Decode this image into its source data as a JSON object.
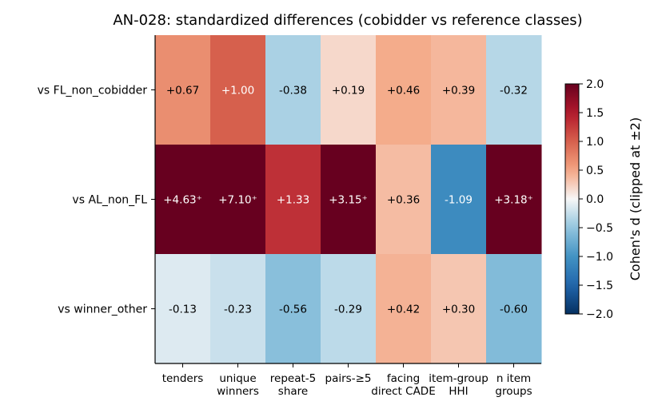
{
  "chart_data": {
    "type": "heatmap",
    "title": "AN-028: standardized differences (cobidder vs reference classes)",
    "rows": [
      "vs FL_non_cobidder",
      "vs AL_non_FL",
      "vs winner_other"
    ],
    "columns": [
      [
        "tenders"
      ],
      [
        "unique",
        "winners"
      ],
      [
        "repeat-5",
        "share"
      ],
      [
        "pairs-≥5"
      ],
      [
        "facing",
        "direct CADE"
      ],
      [
        "item-group",
        "HHI"
      ],
      [
        "n item",
        "groups"
      ]
    ],
    "values": [
      [
        0.67,
        1.0,
        -0.38,
        0.19,
        0.46,
        0.39,
        -0.32
      ],
      [
        4.63,
        7.1,
        1.33,
        3.15,
        0.36,
        -1.09,
        3.18
      ],
      [
        -0.13,
        -0.23,
        -0.56,
        -0.29,
        0.42,
        0.3,
        -0.6
      ]
    ],
    "labels": [
      [
        "+0.67",
        "+1.00",
        "-0.38",
        "+0.19",
        "+0.46",
        "+0.39",
        "-0.32"
      ],
      [
        "+4.63⁺",
        "+7.10⁺",
        "+1.33",
        "+3.15⁺",
        "+0.36",
        "-1.09",
        "+3.18⁺"
      ],
      [
        "-0.13",
        "-0.23",
        "-0.56",
        "-0.29",
        "+0.42",
        "+0.30",
        "-0.60"
      ]
    ],
    "clip": [
      -2,
      2
    ],
    "colormap": "RdBu_r",
    "colorbar": {
      "label": "Cohen's d (clipped at ±2)",
      "range": [
        -2,
        2
      ],
      "ticks": [
        2.0,
        1.5,
        1.0,
        0.5,
        0.0,
        -0.5,
        -1.0,
        -1.5,
        -2.0
      ],
      "tick_labels": [
        "2.0",
        "1.5",
        "1.0",
        "0.5",
        "0.0",
        "−0.5",
        "−1.0",
        "−1.5",
        "−2.0"
      ]
    }
  }
}
